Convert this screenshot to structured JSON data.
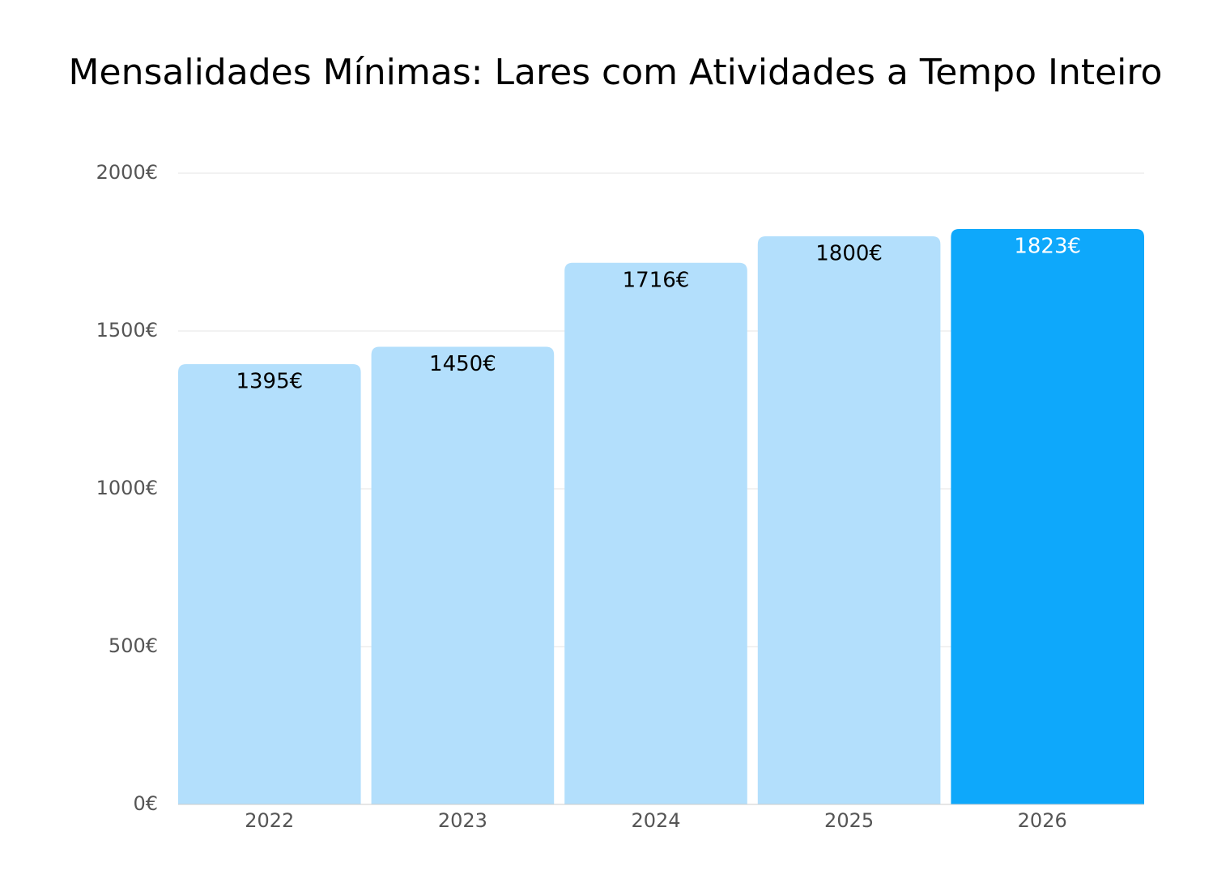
{
  "chart_data": {
    "type": "bar",
    "title": "Mensalidades Mínimas: Lares com Atividades a Tempo Inteiro",
    "categories": [
      "2022",
      "2023",
      "2024",
      "2025",
      "2026"
    ],
    "values": [
      1395,
      1450,
      1716,
      1800,
      1823
    ],
    "value_labels": [
      "1395€",
      "1450€",
      "1716€",
      "1800€",
      "1823€"
    ],
    "colors": [
      "#b3dffc",
      "#b3dffc",
      "#b3dffc",
      "#b3dffc",
      "#0ea8fb"
    ],
    "value_label_colors": [
      "#000000",
      "#000000",
      "#000000",
      "#000000",
      "#ffffff"
    ],
    "ylim": [
      0,
      2000
    ],
    "yticks": [
      {
        "value": 0,
        "label": "0€"
      },
      {
        "value": 500,
        "label": "500€"
      },
      {
        "value": 1000,
        "label": "1000€"
      },
      {
        "value": 1500,
        "label": "1500€"
      },
      {
        "value": 2000,
        "label": "2000€"
      }
    ],
    "grid": true
  }
}
